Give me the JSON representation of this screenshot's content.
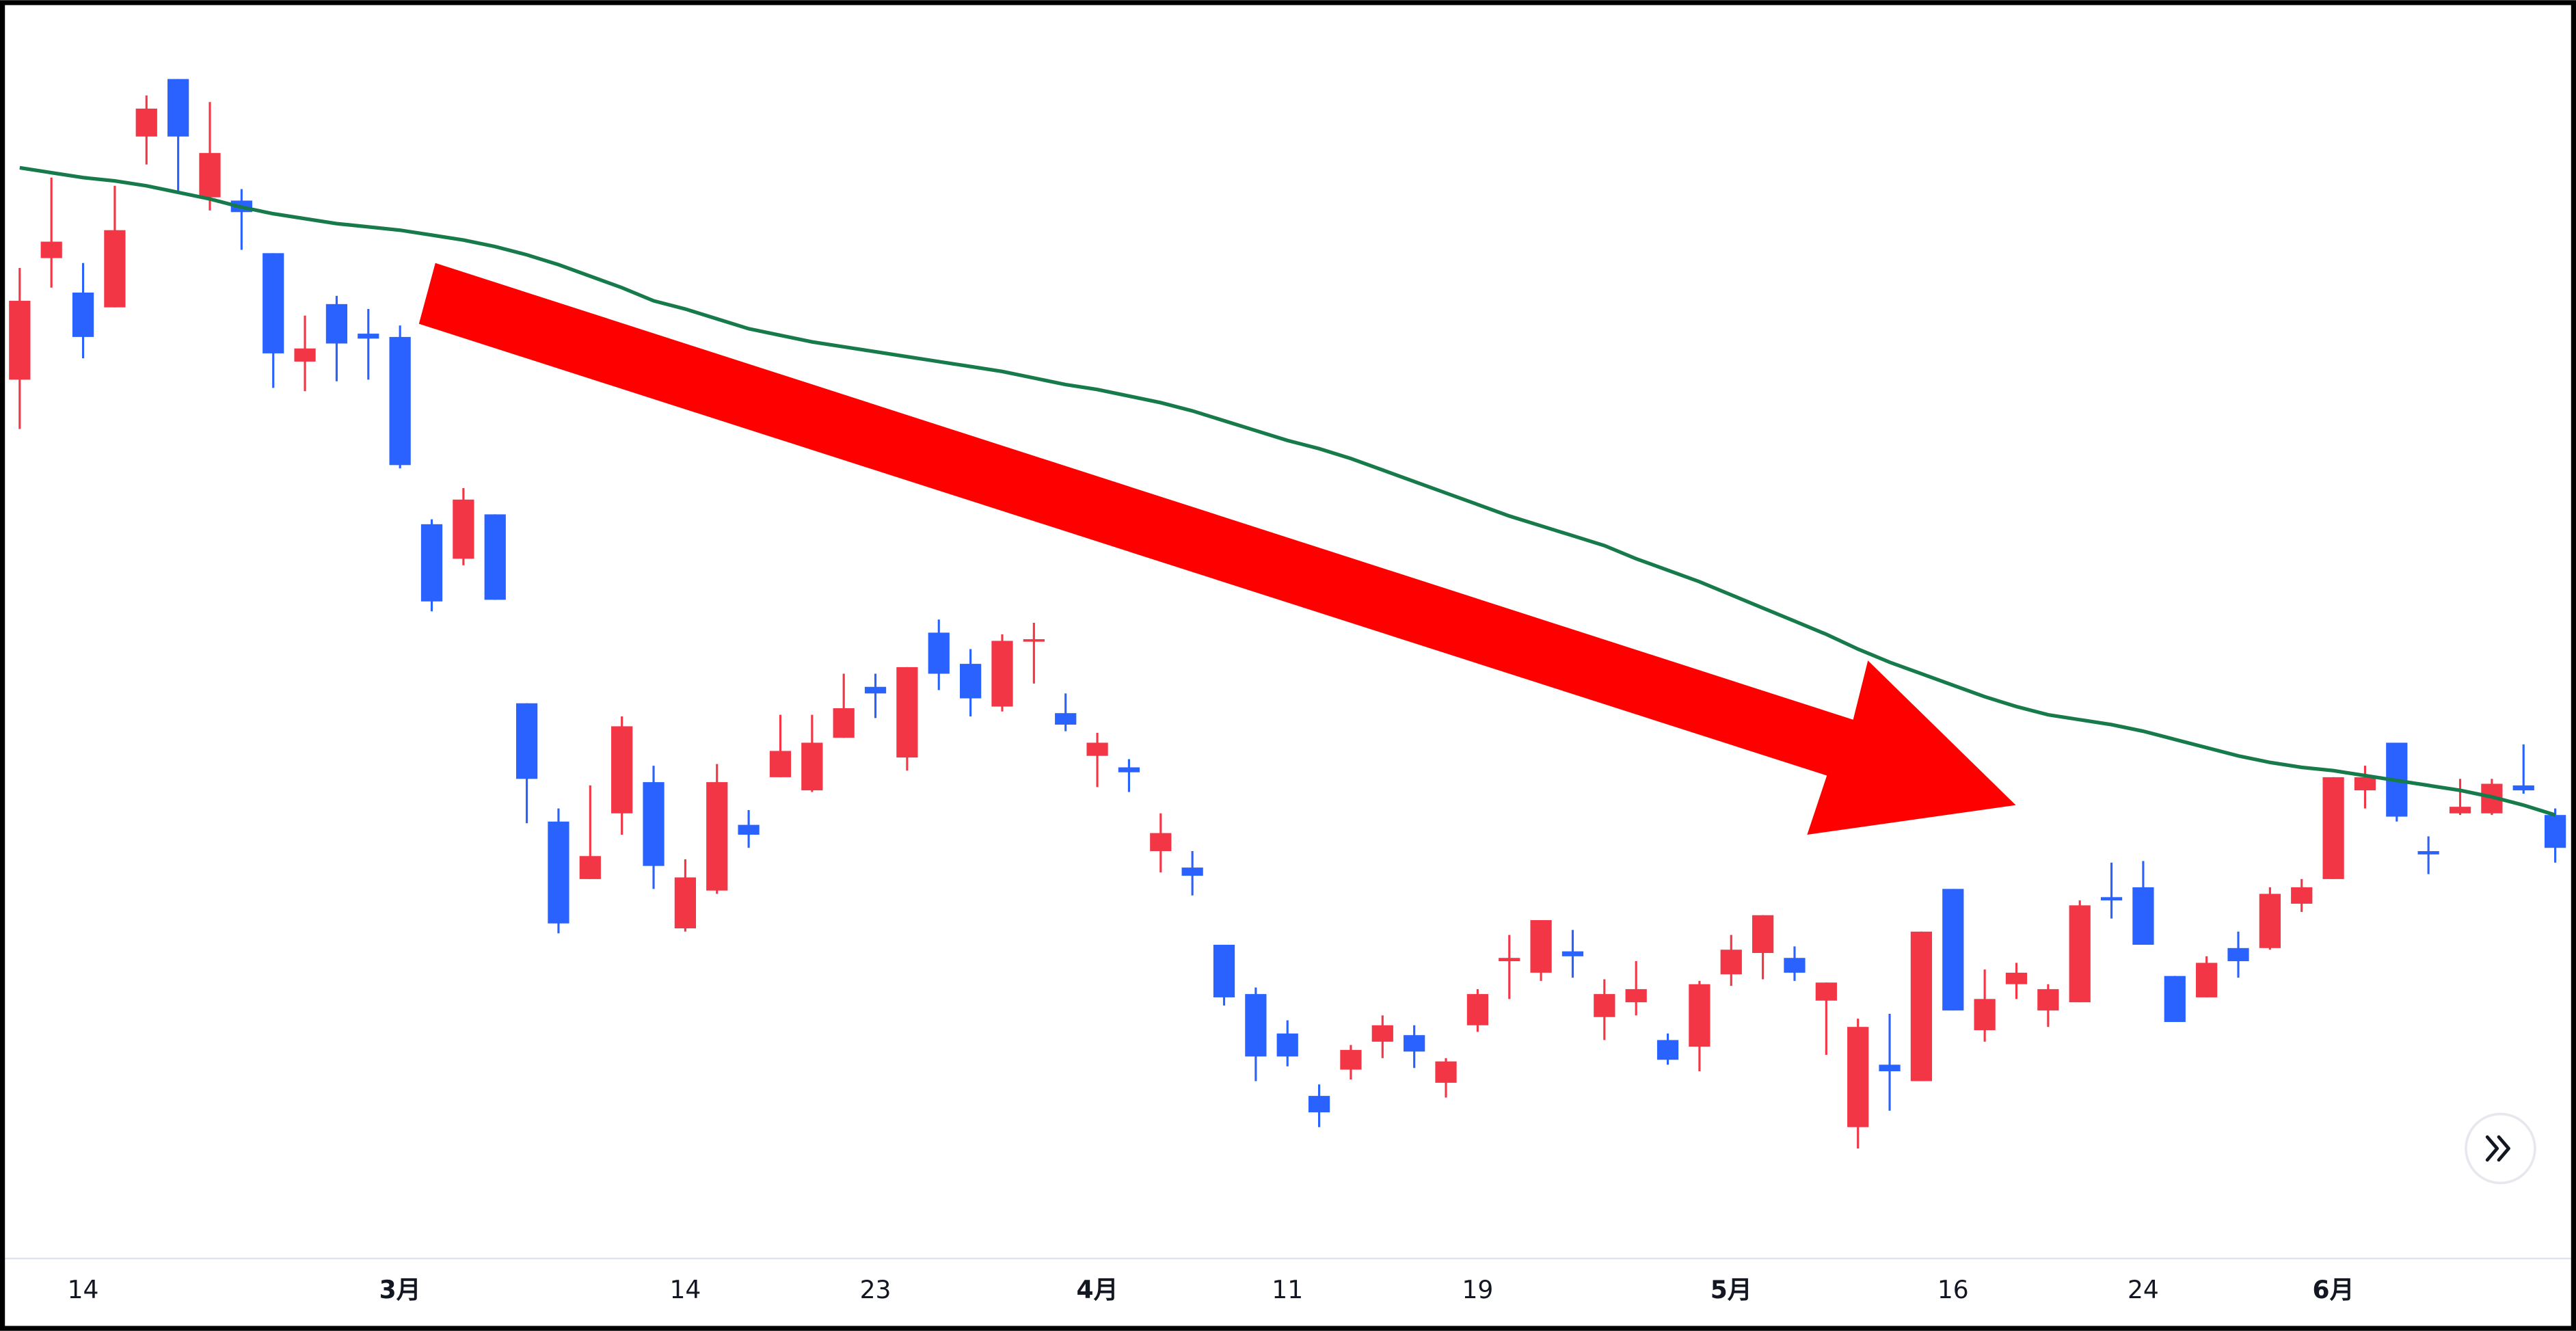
{
  "chart_data": {
    "type": "candlestick",
    "categories": [
      null,
      null,
      "14",
      null,
      null,
      null,
      null,
      null,
      null,
      null,
      null,
      null,
      "3月",
      null,
      null,
      null,
      null,
      null,
      null,
      null,
      null,
      "14",
      null,
      null,
      null,
      null,
      null,
      "23",
      null,
      null,
      null,
      null,
      null,
      null,
      "4月",
      null,
      null,
      null,
      null,
      null,
      "11",
      null,
      null,
      null,
      null,
      null,
      "19",
      null,
      null,
      null,
      null,
      null,
      null,
      null,
      "5月",
      null,
      null,
      null,
      null,
      null,
      null,
      "16",
      null,
      null,
      null,
      null,
      null,
      "24",
      null,
      null,
      null,
      null,
      null,
      "6月",
      null,
      null,
      null,
      null,
      null,
      null,
      null
    ],
    "open": [
      534,
      608,
      587,
      578,
      682,
      717,
      645,
      643,
      611,
      545,
      580,
      562,
      560,
      446,
      425,
      452,
      337,
      265,
      230,
      270,
      289,
      200,
      223,
      263,
      292,
      284,
      316,
      347,
      304,
      380,
      361,
      335,
      375,
      331,
      305,
      298,
      247,
      237,
      190,
      160,
      136,
      98,
      114,
      131,
      135,
      106,
      141,
      180,
      173,
      186,
      146,
      155,
      132,
      128,
      172,
      185,
      182,
      156,
      79,
      117,
      107,
      224,
      138,
      166,
      150,
      155,
      219,
      225,
      171,
      158,
      188,
      188,
      215,
      230,
      284,
      313,
      247,
      270,
      270,
      287,
      269
    ],
    "high": [
      602,
      657,
      605,
      652,
      707,
      717,
      703,
      650,
      611,
      573,
      585,
      577,
      567,
      449,
      468,
      452,
      337,
      273,
      287,
      329,
      299,
      242,
      300,
      272,
      330,
      330,
      355,
      355,
      359,
      388,
      370,
      379,
      386,
      343,
      319,
      303,
      270,
      247,
      190,
      164,
      144,
      105,
      129,
      147,
      141,
      121,
      163,
      196,
      205,
      199,
      169,
      180,
      136,
      168,
      196,
      208,
      189,
      167,
      145,
      148,
      198,
      224,
      175,
      179,
      166,
      217,
      240,
      241,
      171,
      183,
      198,
      225,
      230,
      292,
      299,
      313,
      256,
      291,
      291,
      312,
      273
    ],
    "low": [
      504,
      590,
      547,
      578,
      665,
      648,
      637,
      613,
      529,
      527,
      533,
      534,
      480,
      393,
      421,
      400,
      264,
      197,
      230,
      257,
      224,
      198,
      221,
      249,
      292,
      283,
      316,
      328,
      296,
      345,
      329,
      332,
      349,
      320,
      286,
      283,
      234,
      220,
      153,
      107,
      116,
      79,
      108,
      121,
      115,
      97,
      137,
      157,
      168,
      170,
      132,
      147,
      117,
      113,
      165,
      169,
      168,
      123,
      66,
      89,
      107,
      150,
      131,
      157,
      140,
      155,
      206,
      190,
      143,
      158,
      170,
      187,
      210,
      230,
      273,
      265,
      233,
      269,
      269,
      282,
      240
    ],
    "close": [
      582,
      618,
      560,
      625,
      699,
      682,
      672,
      636,
      550,
      553,
      556,
      559,
      482,
      399,
      461,
      400,
      291,
      203,
      244,
      323,
      238,
      231,
      289,
      257,
      308,
      313,
      334,
      343,
      359,
      355,
      340,
      375,
      376,
      324,
      313,
      295,
      258,
      232,
      158,
      122,
      122,
      88,
      126,
      141,
      125,
      119,
      160,
      182,
      205,
      183,
      160,
      163,
      120,
      166,
      187,
      208,
      173,
      167,
      140,
      113,
      198,
      150,
      157,
      173,
      163,
      214,
      217,
      190,
      143,
      179,
      180,
      221,
      225,
      292,
      292,
      268,
      245,
      274,
      288,
      284,
      249
    ],
    "up_color": "#f23645",
    "down_color": "#2962ff",
    "moving_average": {
      "color": "#167a4a",
      "values": [
        663,
        660,
        657,
        655,
        652,
        648,
        644,
        639,
        635,
        632,
        629,
        627,
        625,
        622,
        619,
        615,
        610,
        604,
        597,
        590,
        582,
        577,
        571,
        565,
        561,
        557,
        554,
        551,
        548,
        545,
        542,
        539,
        535,
        531,
        528,
        524,
        520,
        515,
        509,
        503,
        497,
        492,
        486,
        479,
        472,
        465,
        458,
        451,
        445,
        439,
        433,
        425,
        418,
        411,
        403,
        395,
        387,
        379,
        370,
        362,
        355,
        348,
        341,
        335,
        330,
        327,
        324,
        320,
        315,
        310,
        305,
        301,
        298,
        296,
        293,
        290,
        287,
        284,
        280,
        275,
        269
      ]
    },
    "ylim": [
      0,
      760
    ]
  }
}
